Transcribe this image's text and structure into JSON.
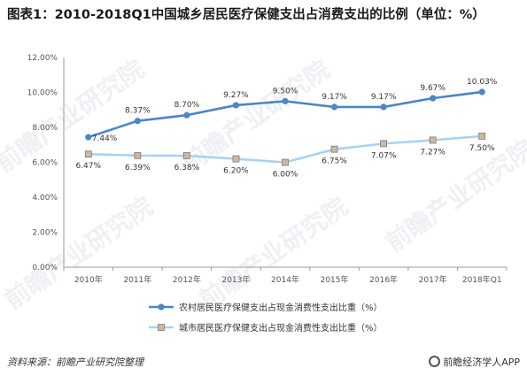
{
  "page_title": "图表1：2010-2018Q1中国城乡居民医疗保健支出占消费支出的比例（单位：%）",
  "source": "资料来源：前瞻产业研究院整理",
  "brand": "前瞻经济学人APP",
  "watermark": "前瞻产业研究院",
  "colors": {
    "rural": "#4a86c8",
    "urban": "#a9d2f2",
    "urban_marker_fill": "#cdb8a0",
    "urban_marker_stroke": "#7a7a7a",
    "axis": "#999999"
  },
  "chart_data": {
    "type": "line",
    "title": "图表1：2010-2018Q1中国城乡居民医疗保健支出占消费支出的比例（单位：%）",
    "categories": [
      "2010年",
      "2011年",
      "2012年",
      "2013年",
      "2014年",
      "2015年",
      "2016年",
      "2017年",
      "2018年Q1"
    ],
    "ylim": [
      0,
      12
    ],
    "yticks": [
      "0.00%",
      "2.00%",
      "4.00%",
      "6.00%",
      "8.00%",
      "10.00%",
      "12.00%"
    ],
    "grid": false,
    "legend_position": "bottom",
    "series": [
      {
        "name": "农村居民医疗保健支出占现金消费性支出比重（%）",
        "values": [
          7.44,
          8.37,
          8.7,
          9.27,
          9.5,
          9.17,
          9.17,
          9.67,
          10.03
        ],
        "labels": [
          "7.44%",
          "8.37%",
          "8.70%",
          "9.27%",
          "9.50%",
          "9.17%",
          "9.17%",
          "9.67%",
          "10.03%"
        ]
      },
      {
        "name": "城市居民医疗保健支出占现金消费性支出比重（%）",
        "values": [
          6.47,
          6.39,
          6.38,
          6.2,
          6.0,
          6.75,
          7.07,
          7.27,
          7.5
        ],
        "labels": [
          "6.47%",
          "6.39%",
          "6.38%",
          "6.20%",
          "6.00%",
          "6.75%",
          "7.07%",
          "7.27%",
          "7.50%"
        ]
      }
    ]
  }
}
